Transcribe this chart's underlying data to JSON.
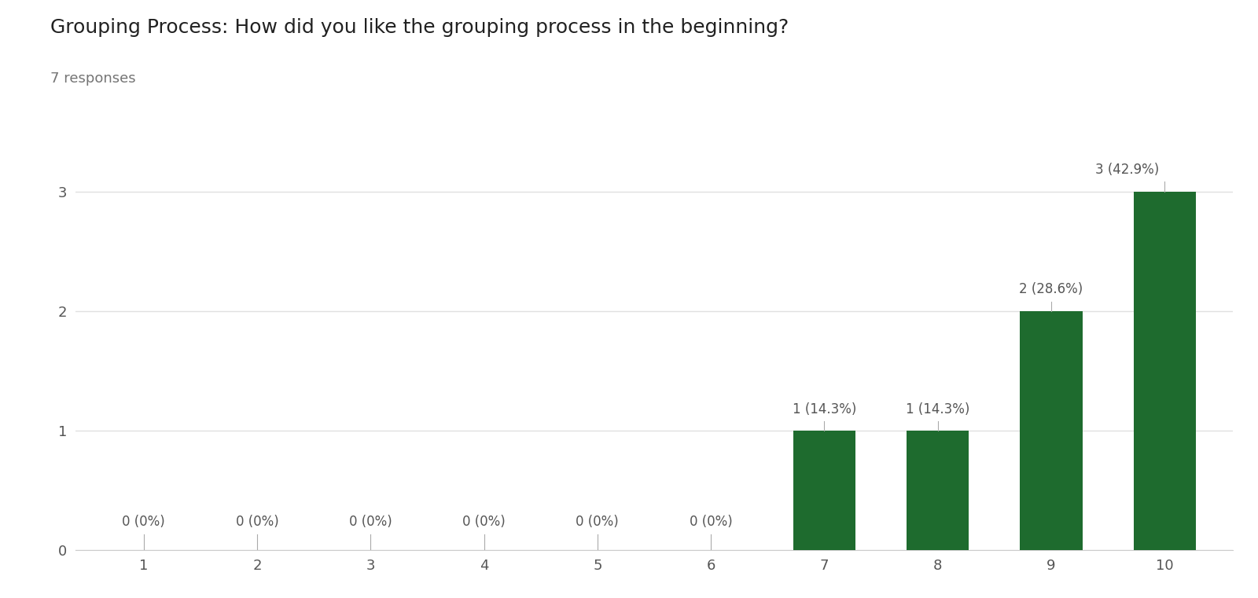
{
  "title": "Grouping Process: How did you like the grouping process in the beginning?",
  "subtitle": "7 responses",
  "categories": [
    1,
    2,
    3,
    4,
    5,
    6,
    7,
    8,
    9,
    10
  ],
  "values": [
    0,
    0,
    0,
    0,
    0,
    0,
    1,
    1,
    2,
    3
  ],
  "labels": [
    "0 (0%)",
    "0 (0%)",
    "0 (0%)",
    "0 (0%)",
    "0 (0%)",
    "0 (0%)",
    "1 (14.3%)",
    "1 (14.3%)",
    "2 (28.6%)",
    "3 (42.9%)"
  ],
  "bar_color": "#1e6b2e",
  "background_color": "#ffffff",
  "grid_color": "#e0e0e0",
  "title_fontsize": 18,
  "subtitle_fontsize": 13,
  "label_fontsize": 12,
  "tick_fontsize": 13,
  "ylim": [
    0,
    3.5
  ],
  "yticks": [
    0,
    1,
    2,
    3
  ]
}
